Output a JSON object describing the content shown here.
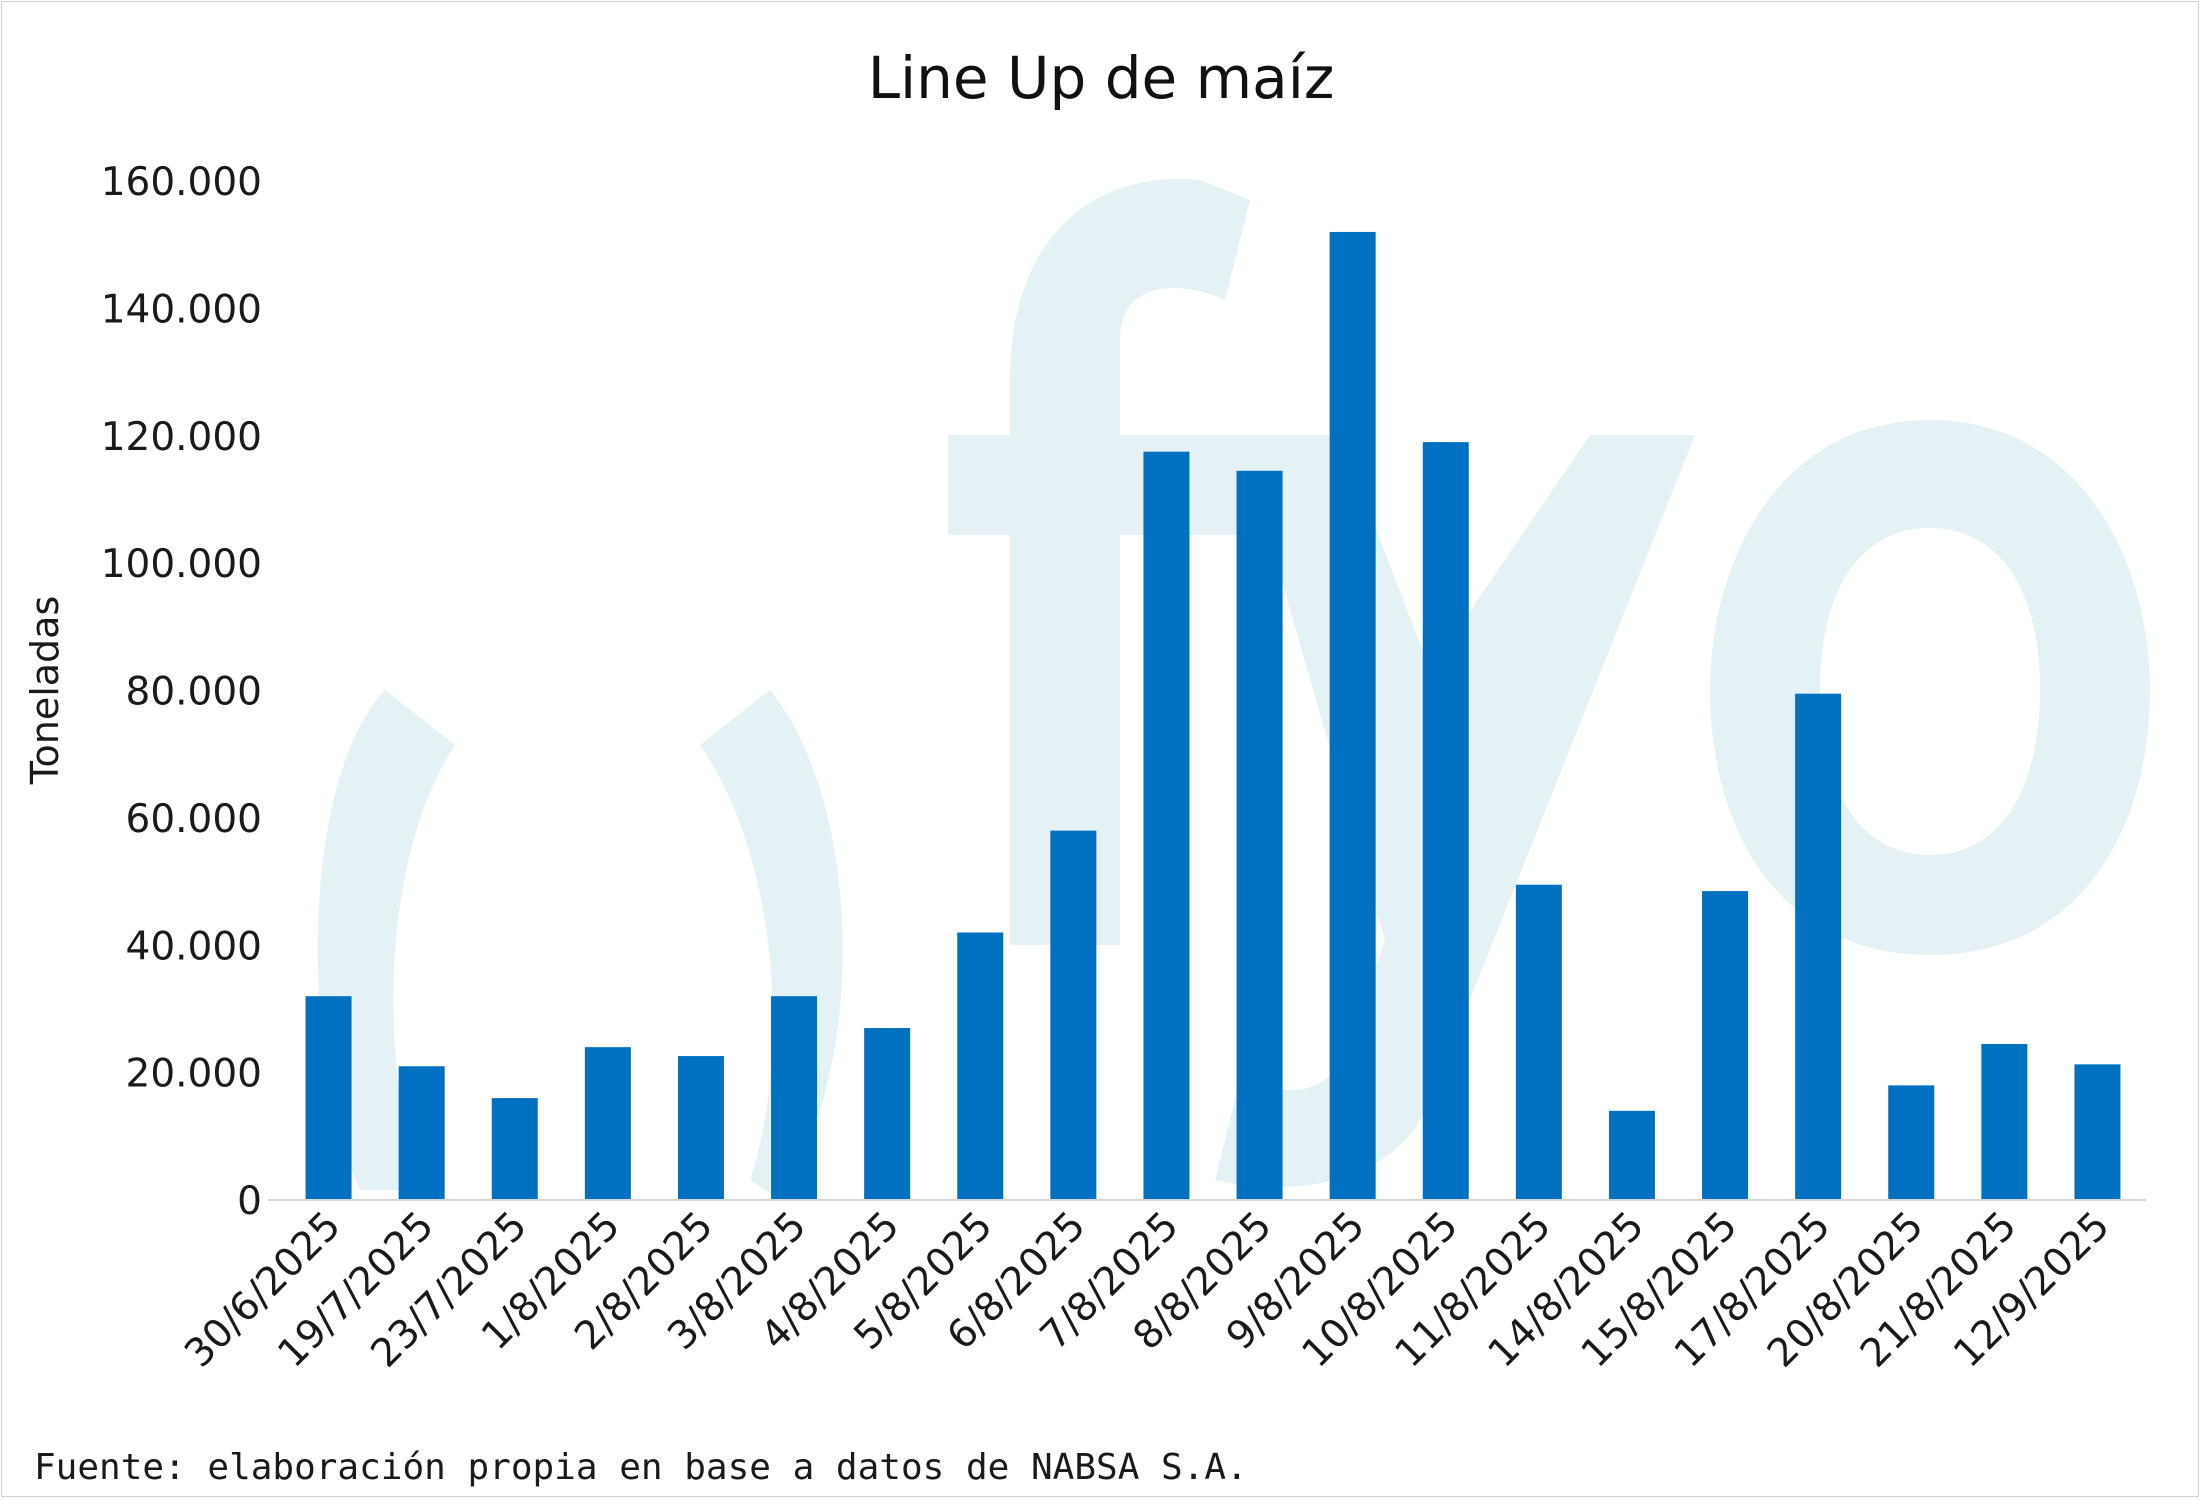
{
  "chart_data": {
    "type": "bar",
    "title": "Line Up de maíz",
    "ylabel": "Toneladas",
    "xlabel": "",
    "ylim": [
      0,
      160000
    ],
    "yticks": [
      0,
      20000,
      40000,
      60000,
      80000,
      100000,
      120000,
      140000,
      160000
    ],
    "ytick_labels": [
      "0",
      "20.000",
      "40.000",
      "60.000",
      "80.000",
      "100.000",
      "120.000",
      "140.000",
      "160.000"
    ],
    "categories": [
      "30/6/2025",
      "19/7/2025",
      "23/7/2025",
      "1/8/2025",
      "2/8/2025",
      "3/8/2025",
      "4/8/2025",
      "5/8/2025",
      "6/8/2025",
      "7/8/2025",
      "8/8/2025",
      "9/8/2025",
      "10/8/2025",
      "11/8/2025",
      "14/8/2025",
      "15/8/2025",
      "17/8/2025",
      "20/8/2025",
      "21/8/2025",
      "12/9/2025"
    ],
    "values": [
      32000,
      21000,
      16000,
      24000,
      22600,
      32000,
      27000,
      42000,
      58000,
      117500,
      114500,
      152000,
      119000,
      49500,
      14000,
      48500,
      79500,
      18000,
      24500,
      21300
    ],
    "bar_color": "#0070c0",
    "grid": false,
    "legend": "none"
  },
  "watermark": {
    "color": "#e4f1f5"
  },
  "source_note": "Fuente: elaboración propia en base a datos de NABSA S.A."
}
